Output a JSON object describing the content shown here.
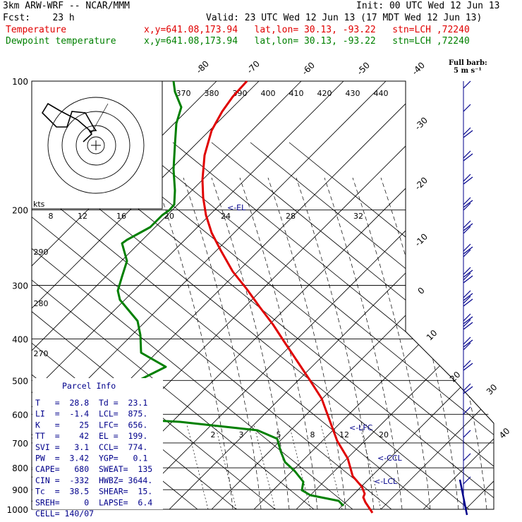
{
  "header": {
    "model": "3km ARW-WRF -- NCAR/MMM",
    "init": "Init: 00 UTC Wed 12 Jun 13",
    "fcst": "Fcst:    23 h",
    "valid": "Valid: 23 UTC Wed 12 Jun 13 (17 MDT Wed 12 Jun 13)",
    "temp_label": "Temperature",
    "dew_label": "Dewpoint temperature",
    "loc_info": "x,y=641.08,173.94   lat,lon= 30.13, -93.22   stn=LCH ,72240",
    "temp_color": "#e00000",
    "dew_color": "#008000",
    "full_barb": "Full barb:",
    "full_barb_units": "5 m s⁻¹"
  },
  "chart_data": {
    "type": "line",
    "subtype": "skew-T log-p",
    "pressure_levels_hPa": [
      100,
      200,
      300,
      400,
      500,
      600,
      700,
      800,
      900,
      1000
    ],
    "pressure_labels": [
      "100",
      "200",
      "300",
      "400",
      "500",
      "600",
      "700",
      "800",
      "900",
      "1000"
    ],
    "isotherm_labels": [
      "-80",
      "-70",
      "-60",
      "-50",
      "-40",
      "-30",
      "-20",
      "-10",
      "0",
      "10",
      "20",
      "30",
      "40"
    ],
    "theta_e_labels": [
      "370",
      "380",
      "390",
      "400",
      "410",
      "420",
      "430",
      "440"
    ],
    "theta_labels": [
      "290",
      "280",
      "270"
    ],
    "mixing_ratio_labels": [
      "2",
      "3",
      "5",
      "8",
      "12",
      "20"
    ],
    "mixing_ratio_upper_labels": [
      "8",
      "12",
      "16",
      "20",
      "24",
      "28",
      "32"
    ],
    "level_markers": [
      "EL",
      "LFC",
      "CCL",
      "LCL"
    ],
    "series": [
      {
        "name": "Temperature",
        "color": "#e00000",
        "points": [
          [
            350,
            115
          ],
          [
            330,
            137
          ],
          [
            315,
            158
          ],
          [
            300,
            185
          ],
          [
            290,
            220
          ],
          [
            287,
            255
          ],
          [
            288,
            280
          ],
          [
            292,
            305
          ],
          [
            300,
            330
          ],
          [
            313,
            355
          ],
          [
            330,
            385
          ],
          [
            350,
            410
          ],
          [
            368,
            435
          ],
          [
            387,
            460
          ],
          [
            402,
            483
          ],
          [
            420,
            510
          ],
          [
            440,
            540
          ],
          [
            456,
            565
          ],
          [
            467,
            595
          ],
          [
            478,
            625
          ],
          [
            493,
            650
          ],
          [
            500,
            675
          ],
          [
            513,
            690
          ],
          [
            517,
            700
          ],
          [
            515,
            705
          ],
          [
            518,
            712
          ],
          [
            528,
            727
          ]
        ]
      },
      {
        "name": "Dewpoint temperature",
        "color": "#008000",
        "points": [
          [
            246,
            115
          ],
          [
            248,
            130
          ],
          [
            257,
            152
          ],
          [
            250,
            175
          ],
          [
            248,
            205
          ],
          [
            246,
            240
          ],
          [
            248,
            270
          ],
          [
            247,
            290
          ],
          [
            240,
            298
          ],
          [
            230,
            305
          ],
          [
            213,
            322
          ],
          [
            180,
            340
          ],
          [
            173,
            345
          ],
          [
            180,
            370
          ],
          [
            173,
            392
          ],
          [
            167,
            412
          ],
          [
            170,
            425
          ],
          [
            195,
            455
          ],
          [
            199,
            475
          ],
          [
            200,
            500
          ],
          [
            235,
            520
          ],
          [
            195,
            540
          ],
          [
            190,
            545
          ],
          [
            65,
            564
          ],
          [
            143,
            592
          ],
          [
            255,
            598
          ],
          [
            365,
            610
          ],
          [
            393,
            622
          ],
          [
            398,
            640
          ],
          [
            404,
            655
          ],
          [
            418,
            668
          ],
          [
            430,
            683
          ],
          [
            428,
            695
          ],
          [
            440,
            702
          ],
          [
            480,
            710
          ],
          [
            487,
            717
          ]
        ]
      }
    ],
    "hodograph": {
      "units": "kts",
      "rings": 4
    },
    "wind_barbs_m_s": [
      5,
      5,
      10,
      10,
      10,
      15,
      15,
      15,
      20,
      20,
      20,
      15,
      10,
      10,
      5,
      5,
      5,
      5
    ],
    "grid": true
  },
  "parcel": {
    "title": "Parcel Info",
    "rows": [
      "T   =  28.8  Td =  23.1",
      "LI  =  -1.4  LCL=  875.",
      "K   =    25  LFC=  656.",
      "TT  =    42  EL =  199.",
      "SVI =   3.1  CCL=  774.",
      "PW  =  3.42  YGP=   0.1",
      "CAPE=   680  SWEAT=  135",
      "CIN =  -332  HWBZ= 3644.",
      "Tc  =  38.5  SHEAR=  15.",
      "SREH=     0  LAPSE=  6.4",
      "CELL= 140/07"
    ]
  }
}
